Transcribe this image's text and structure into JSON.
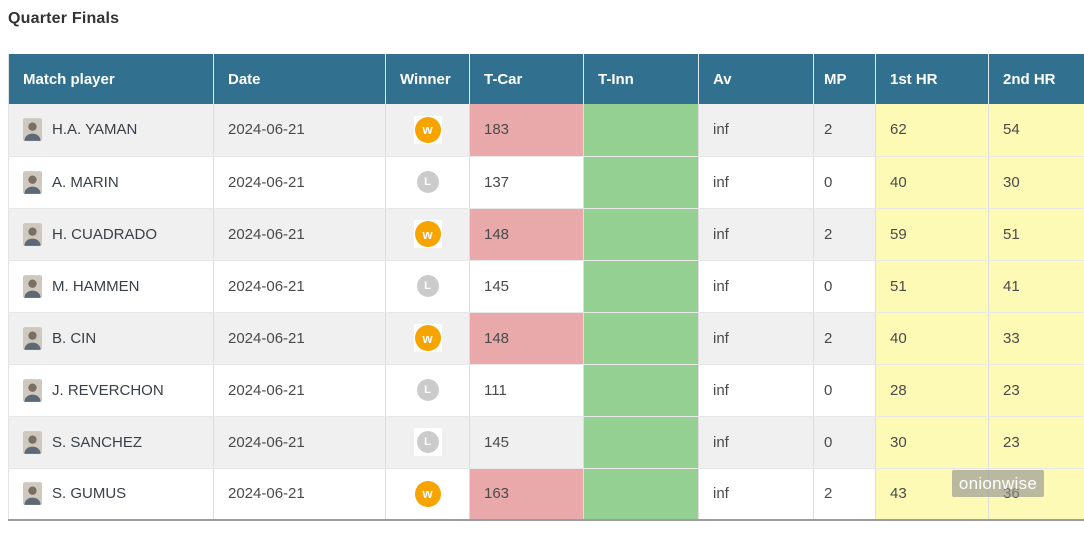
{
  "page": {
    "title": "Quarter Finals",
    "watermark": "onionwise"
  },
  "badges": {
    "win_char": "w",
    "loss_char": "L"
  },
  "table": {
    "columns": [
      {
        "key": "player",
        "label": "Match player"
      },
      {
        "key": "date",
        "label": "Date"
      },
      {
        "key": "winner",
        "label": "Winner"
      },
      {
        "key": "t_car",
        "label": "T-Car"
      },
      {
        "key": "t_inn",
        "label": "T-Inn"
      },
      {
        "key": "av",
        "label": "Av"
      },
      {
        "key": "mp",
        "label": "MP"
      },
      {
        "key": "hr1",
        "label": "1st HR"
      },
      {
        "key": "hr2",
        "label": "2nd HR"
      }
    ],
    "rows": [
      {
        "player": "H.A. YAMAN",
        "date": "2024-06-21",
        "winner": "W",
        "t_car": "183",
        "t_inn": "",
        "av": "inf",
        "mp": "2",
        "hr1": "62",
        "hr2": "54"
      },
      {
        "player": "A. MARIN",
        "date": "2024-06-21",
        "winner": "L",
        "t_car": "137",
        "t_inn": "",
        "av": "inf",
        "mp": "0",
        "hr1": "40",
        "hr2": "30"
      },
      {
        "player": "H. CUADRADO",
        "date": "2024-06-21",
        "winner": "W",
        "t_car": "148",
        "t_inn": "",
        "av": "inf",
        "mp": "2",
        "hr1": "59",
        "hr2": "51"
      },
      {
        "player": "M. HAMMEN",
        "date": "2024-06-21",
        "winner": "L",
        "t_car": "145",
        "t_inn": "",
        "av": "inf",
        "mp": "0",
        "hr1": "51",
        "hr2": "41"
      },
      {
        "player": "B. CIN",
        "date": "2024-06-21",
        "winner": "W",
        "t_car": "148",
        "t_inn": "",
        "av": "inf",
        "mp": "2",
        "hr1": "40",
        "hr2": "33"
      },
      {
        "player": "J. REVERCHON",
        "date": "2024-06-21",
        "winner": "L",
        "t_car": "111",
        "t_inn": "",
        "av": "inf",
        "mp": "0",
        "hr1": "28",
        "hr2": "23"
      },
      {
        "player": "S. SANCHEZ",
        "date": "2024-06-21",
        "winner": "L",
        "t_car": "145",
        "t_inn": "",
        "av": "inf",
        "mp": "0",
        "hr1": "30",
        "hr2": "23"
      },
      {
        "player": "S. GUMUS",
        "date": "2024-06-21",
        "winner": "W",
        "t_car": "163",
        "t_inn": "",
        "av": "inf",
        "mp": "2",
        "hr1": "43",
        "hr2": "36"
      }
    ]
  },
  "colors": {
    "header_bg": "#31708f",
    "win_badge_bg": "#f7a400",
    "loss_badge_bg": "#cbcbcb",
    "t_car_win_bg": "#e9a9aa",
    "t_inn_bg": "#93d092",
    "hr_bg": "#fcfab5",
    "row_alt_bg": "#f0f0f0"
  }
}
